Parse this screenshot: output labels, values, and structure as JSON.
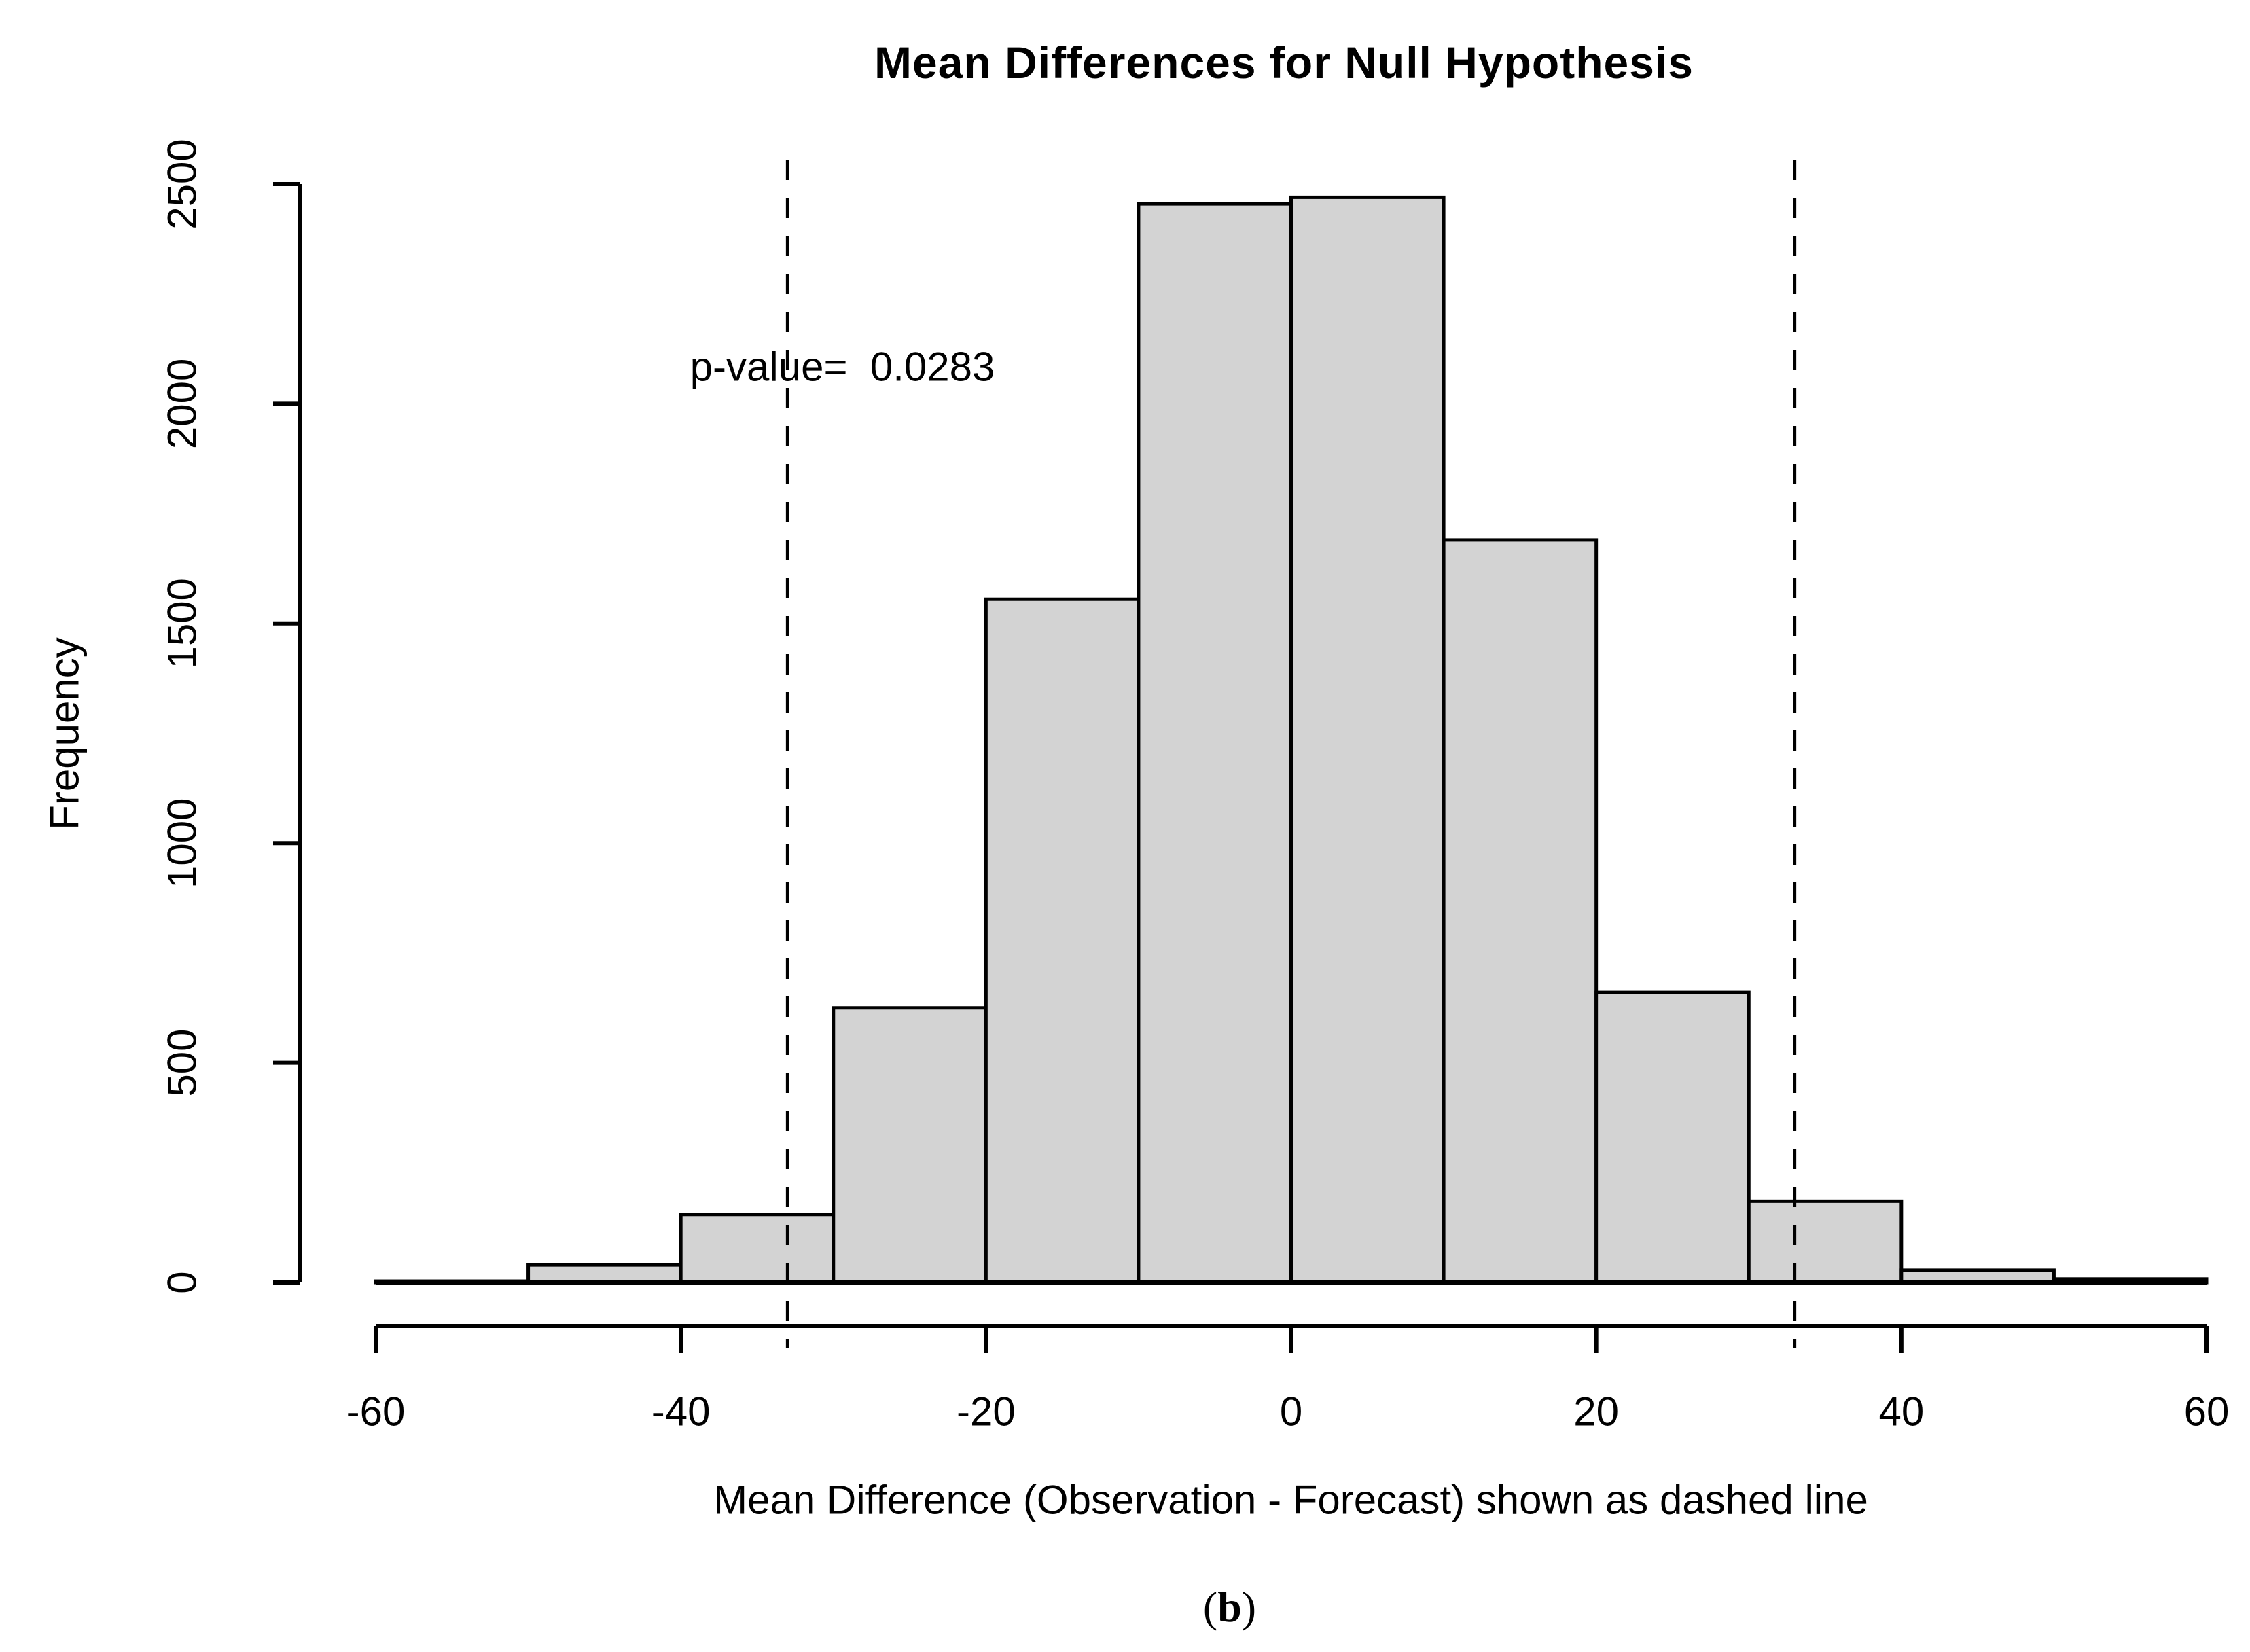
{
  "chart_data": {
    "type": "bar",
    "subtype": "histogram",
    "title": "Mean Differences for Null Hypothesis",
    "xlabel": "Mean Difference (Observation - Forecast) shown as dashed line",
    "ylabel": "Frequency",
    "annotation": "p-value=  0.0283",
    "p_value": 0.0283,
    "bin_width": 10,
    "bins": [
      {
        "x0": -60,
        "x1": -50,
        "count": 3
      },
      {
        "x0": -50,
        "x1": -40,
        "count": 40
      },
      {
        "x0": -40,
        "x1": -30,
        "count": 155
      },
      {
        "x0": -30,
        "x1": -20,
        "count": 625
      },
      {
        "x0": -20,
        "x1": -10,
        "count": 1555
      },
      {
        "x0": -10,
        "x1": 0,
        "count": 2455
      },
      {
        "x0": 0,
        "x1": 10,
        "count": 2470
      },
      {
        "x0": 10,
        "x1": 20,
        "count": 1690
      },
      {
        "x0": 20,
        "x1": 30,
        "count": 660
      },
      {
        "x0": 30,
        "x1": 40,
        "count": 185
      },
      {
        "x0": 40,
        "x1": 50,
        "count": 28
      },
      {
        "x0": 50,
        "x1": 60,
        "count": 8
      }
    ],
    "x_ticks": [
      "-60",
      "-40",
      "-20",
      "0",
      "20",
      "40",
      "60"
    ],
    "x_tick_values": [
      -60,
      -40,
      -20,
      0,
      20,
      40,
      60
    ],
    "y_ticks": [
      "0",
      "500",
      "1000",
      "1500",
      "2000",
      "2500"
    ],
    "y_tick_values": [
      0,
      500,
      1000,
      1500,
      2000,
      2500
    ],
    "xlim": [
      -60,
      60
    ],
    "ylim": [
      0,
      2500
    ],
    "dashed_lines_x": [
      -33,
      33
    ],
    "grid": false,
    "legend": "none",
    "bar_fill": "#d3d3d3",
    "bar_stroke": "#000000",
    "axis_color": "#000000",
    "text_color": "#000000"
  },
  "caption": {
    "open": "(",
    "letter": "b",
    "close": ")"
  }
}
